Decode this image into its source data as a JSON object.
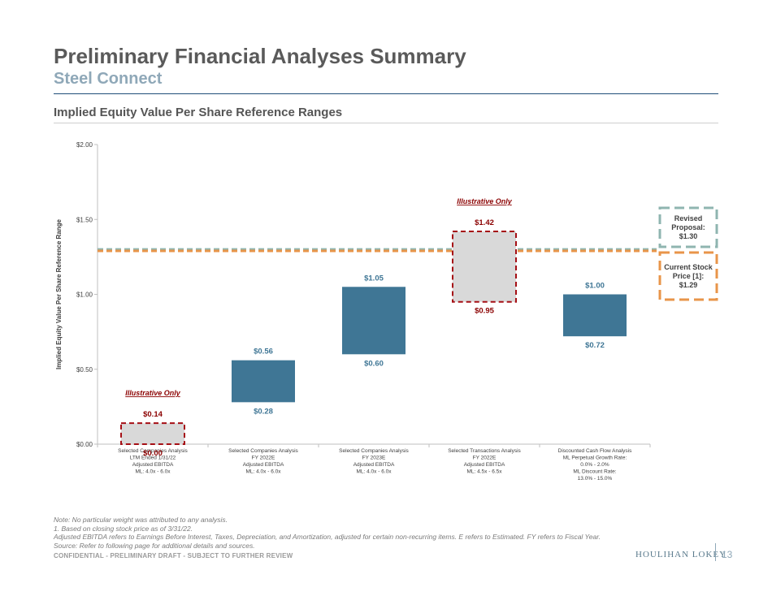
{
  "header": {
    "title": "Preliminary Financial Analyses Summary",
    "subtitle": "Steel Connect",
    "section_title": "Implied Equity Value Per Share Reference Ranges"
  },
  "chart_data": {
    "type": "floating-bar",
    "title": "Implied Equity Value Per Share Reference Ranges",
    "xlabel": "",
    "ylabel": "Implied Equity Value Per Share Reference Range",
    "ylim": [
      0,
      2.0
    ],
    "y_ticks": [
      0,
      0.5,
      1.0,
      1.5,
      2.0
    ],
    "y_tick_labels": [
      "$0.00",
      "$0.50",
      "$1.00",
      "$1.50",
      "$2.00"
    ],
    "categories": [
      [
        "Selected Companies Analysis",
        "LTM Ended 1/31/22",
        "Adjusted EBITDA",
        "ML: 4.0x - 6.0x"
      ],
      [
        "Selected Companies Analysis",
        "FY 2022E",
        "Adjusted EBITDA",
        "ML: 4.0x - 6.0x"
      ],
      [
        "Selected Companies Analysis",
        "FY 2023E",
        "Adjusted EBITDA",
        "ML: 4.0x - 6.0x"
      ],
      [
        "Selected Transactions Analysis",
        "FY 2022E",
        "Adjusted EBITDA",
        "ML: 4.5x - 6.5x"
      ],
      [
        "Discounted Cash Flow Analysis",
        "ML Perpetual Growth Rate:",
        "0.0% - 2.0%",
        "ML Discount Rate:",
        "13.0% - 15.0%"
      ]
    ],
    "bars": [
      {
        "low": 0.0,
        "high": 0.14,
        "low_label": "$0.00",
        "high_label": "$0.14",
        "illustrative": true
      },
      {
        "low": 0.28,
        "high": 0.56,
        "low_label": "$0.28",
        "high_label": "$0.56",
        "illustrative": false
      },
      {
        "low": 0.6,
        "high": 1.05,
        "low_label": "$0.60",
        "high_label": "$1.05",
        "illustrative": false
      },
      {
        "low": 0.95,
        "high": 1.42,
        "low_label": "$0.95",
        "high_label": "$1.42",
        "illustrative": true
      },
      {
        "low": 0.72,
        "high": 1.0,
        "low_label": "$0.72",
        "high_label": "$1.00",
        "illustrative": false
      }
    ],
    "illustrative_label": "Illustrative Only",
    "reference_lines": [
      {
        "name": "Revised Proposal",
        "value": 1.3,
        "label_lines": [
          "Revised",
          "Proposal:",
          "$1.30"
        ],
        "color": "#8fb5b0"
      },
      {
        "name": "Current Stock Price",
        "value": 1.29,
        "label_lines": [
          "Current Stock",
          "Price [1]:",
          "$1.29"
        ],
        "color": "#e8954a"
      }
    ],
    "colors": {
      "bar": "#3f7695",
      "illustrative_fill": "#d9d9d9",
      "illustrative_border": "#a50f15",
      "label_blue": "#3f7695",
      "label_red": "#8b0000"
    }
  },
  "footer": {
    "notes": [
      "Note: No particular weight was attributed to any analysis.",
      "1. Based on closing stock price as of 3/31/22.",
      "Adjusted EBITDA refers to Earnings Before Interest, Taxes, Depreciation, and Amortization, adjusted for certain non-recurring items. E refers to Estimated. FY refers to Fiscal Year.",
      "Source: Refer to following page for additional details and sources."
    ],
    "confidential": "CONFIDENTIAL - PRELIMINARY DRAFT - SUBJECT TO FURTHER REVIEW",
    "logo": "HOULIHAN LOKEY",
    "page_number": "13"
  }
}
